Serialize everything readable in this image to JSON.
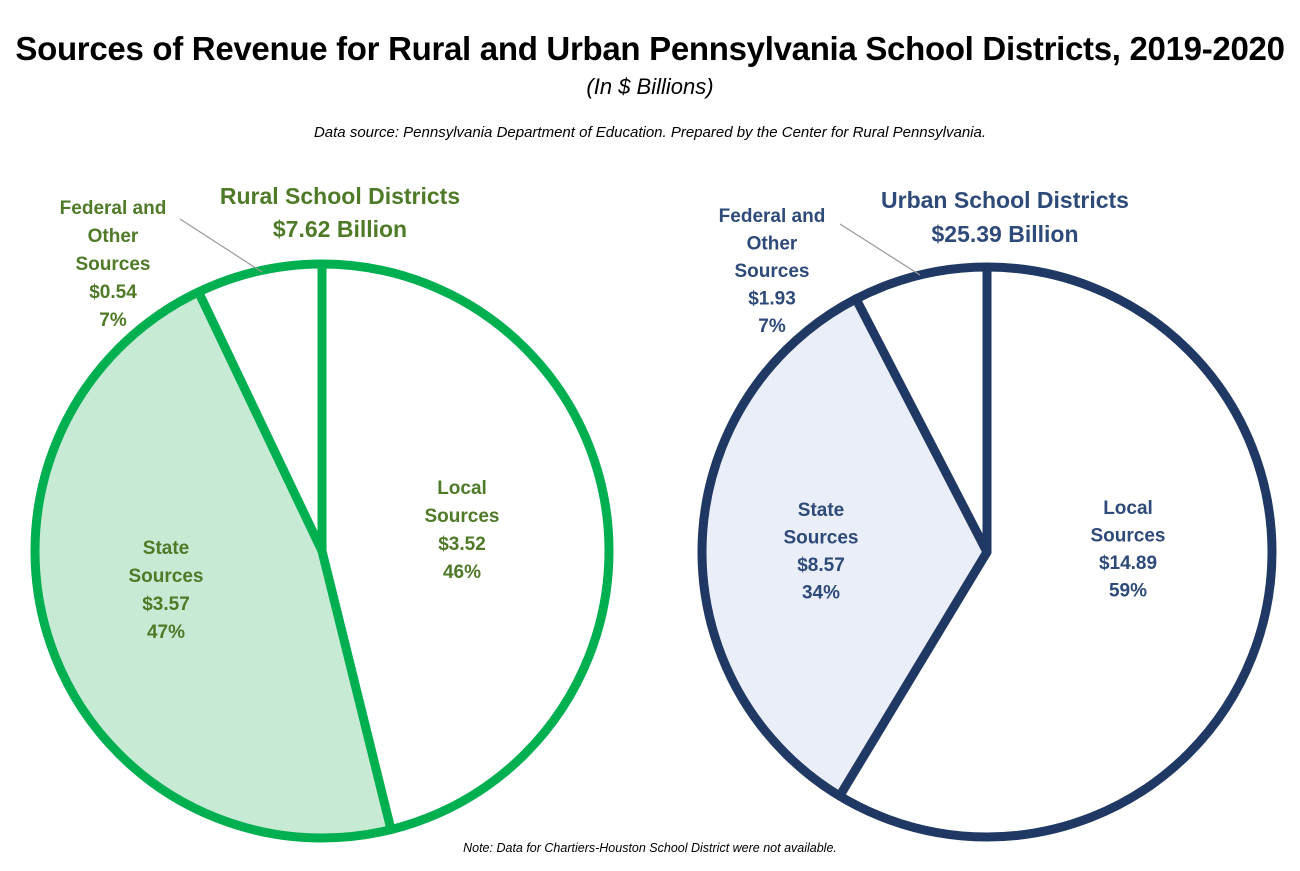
{
  "title": "Sources of Revenue for Rural and Urban Pennsylvania School Districts, 2019-2020",
  "subtitle": "(In $ Billions)",
  "source": "Data source: Pennsylvania Department of Education. Prepared by the Center for Rural Pennsylvania.",
  "note": "Note: Data for Chartiers-Houston School District were not available.",
  "chart_data": [
    {
      "type": "pie",
      "title": "Rural School Districts",
      "subtitle": "$7.62 Billion",
      "color": "#00b050",
      "text_color": "#4f7a28",
      "fill_highlight": "#c6ead3",
      "slices": [
        {
          "label": "Local Sources",
          "value": 3.52,
          "value_label": "$3.52",
          "percent": "46%",
          "filled": false
        },
        {
          "label": "State Sources",
          "value": 3.57,
          "value_label": "$3.57",
          "percent": "47%",
          "filled": true
        },
        {
          "label": "Federal and Other Sources",
          "value": 0.54,
          "value_label": "$0.54",
          "percent": "7%",
          "filled": false
        }
      ]
    },
    {
      "type": "pie",
      "title": "Urban School Districts",
      "subtitle": "$25.39 Billion",
      "color": "#1f3864",
      "text_color": "#2e4a78",
      "fill_highlight": "#e9eef8",
      "slices": [
        {
          "label": "Local Sources",
          "value": 14.89,
          "value_label": "$14.89",
          "percent": "59%",
          "filled": false
        },
        {
          "label": "State Sources",
          "value": 8.57,
          "value_label": "$8.57",
          "percent": "34%",
          "filled": true
        },
        {
          "label": "Federal and Other Sources",
          "value": 1.93,
          "value_label": "$1.93",
          "percent": "7%",
          "filled": false
        }
      ]
    }
  ]
}
